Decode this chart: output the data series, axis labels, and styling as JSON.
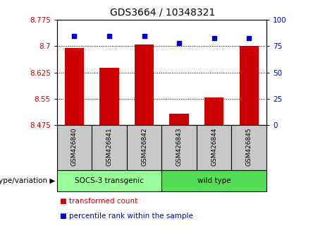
{
  "title": "GDS3664 / 10348321",
  "samples": [
    "GSM426840",
    "GSM426841",
    "GSM426842",
    "GSM426843",
    "GSM426844",
    "GSM426845"
  ],
  "bar_values": [
    8.695,
    8.638,
    8.706,
    8.508,
    8.553,
    8.7
  ],
  "percentile_values": [
    85,
    85,
    85,
    78,
    83,
    83
  ],
  "ylim_left": [
    8.475,
    8.775
  ],
  "ylim_right": [
    0,
    100
  ],
  "yticks_left": [
    8.475,
    8.55,
    8.625,
    8.7,
    8.775
  ],
  "yticks_right": [
    0,
    25,
    50,
    75,
    100
  ],
  "ytick_labels_left": [
    "8.475",
    "8.55",
    "8.625",
    "8.7",
    "8.775"
  ],
  "ytick_labels_right": [
    "0",
    "25",
    "50",
    "75",
    "100"
  ],
  "bar_color": "#cc0000",
  "dot_color": "#0000cc",
  "group1_label": "SOCS-3 transgenic",
  "group2_label": "wild type",
  "group1_color": "#99ff99",
  "group2_color": "#55dd55",
  "group_label_prefix": "genotype/variation",
  "legend_bar_label": "transformed count",
  "legend_dot_label": "percentile rank within the sample",
  "tick_label_color_left": "#cc0000",
  "tick_label_color_right": "#0000cc",
  "n_group1": 3,
  "n_group2": 3
}
